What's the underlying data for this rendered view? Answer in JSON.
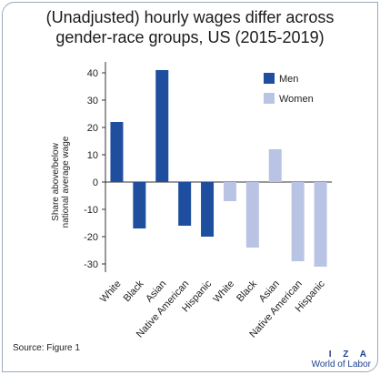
{
  "title_line1": "(Unadjusted) hourly wages differ across",
  "title_line2": "gender-race groups, US (2015-2019)",
  "source": "Source: Figure 1",
  "logo": {
    "line1": "I Z A",
    "line2": "World of Labor"
  },
  "chart_data": {
    "type": "bar",
    "title": "(Unadjusted) hourly wages differ across gender-race groups, US (2015-2019)",
    "ylabel_line1": "Share above/below",
    "ylabel_line2": "national average wage",
    "xlabel": "",
    "ylim": [
      -33,
      44
    ],
    "yticks": [
      40,
      30,
      20,
      10,
      0,
      -10,
      -20,
      -30
    ],
    "grid": false,
    "legend_position": "top-right",
    "categories": [
      "White",
      "Black",
      "Asian",
      "Native American",
      "Hispanic",
      "White",
      "Black",
      "Asian",
      "Native American",
      "Hispanic"
    ],
    "series": [
      {
        "name": "Men",
        "color": "#1f4e9e",
        "values": [
          22,
          -17,
          41,
          -16,
          -20,
          null,
          null,
          null,
          null,
          null
        ]
      },
      {
        "name": "Women",
        "color": "#b9c3e4",
        "values": [
          null,
          null,
          null,
          null,
          null,
          -7,
          -24,
          12,
          -29,
          -31
        ]
      }
    ]
  }
}
